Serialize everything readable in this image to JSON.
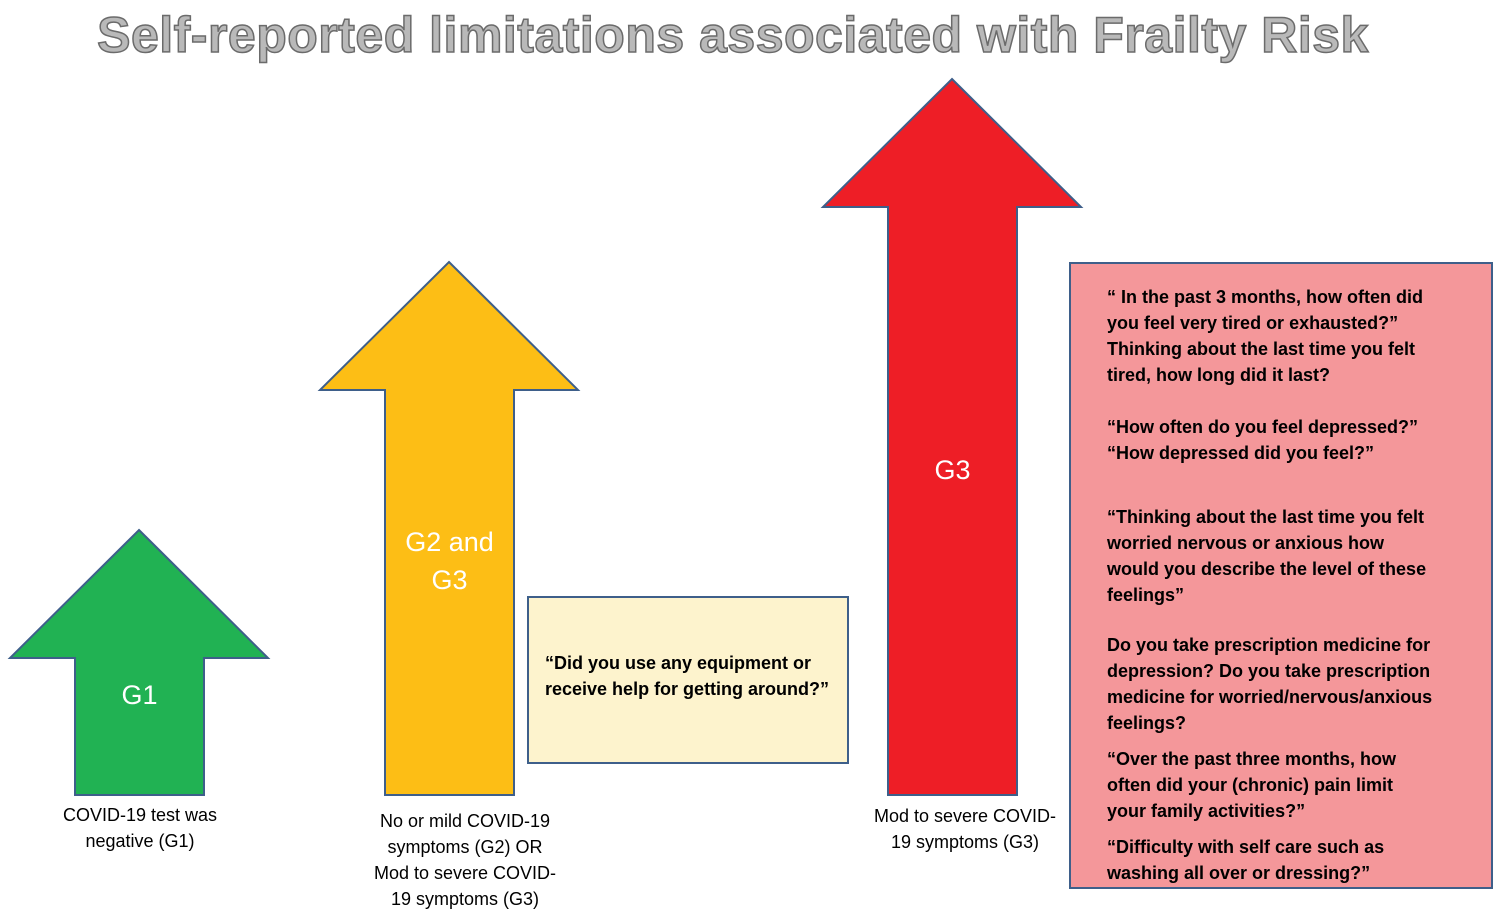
{
  "title": "Self-reported limitations associated with Frailty Risk",
  "colors": {
    "g1_arrow": "#21b253",
    "g2_arrow": "#fdbe15",
    "g3_arrow": "#ee1e26",
    "arrow_outline": "#3e5f8a",
    "yellow_box": "#fdf3cd",
    "red_box": "#f4979a"
  },
  "arrows": [
    {
      "label": "G1",
      "caption_lines": [
        "COVID-19 test was",
        "negative (G1)"
      ]
    },
    {
      "label_lines": [
        "G2 and",
        "G3"
      ],
      "caption_lines": [
        "No or mild COVID-19",
        "symptoms (G2) OR",
        "Mod to severe COVID-",
        "19 symptoms (G3)"
      ]
    },
    {
      "label": "G3",
      "caption_lines": [
        "Mod to severe COVID-",
        "19 symptoms (G3)"
      ]
    }
  ],
  "yellow_box": {
    "lines": [
      "“Did you use any equipment or",
      "receive help for getting around?”"
    ]
  },
  "red_box": {
    "q1": [
      "“ In the past 3 months, how often did",
      "you feel very tired or exhausted?”",
      "Thinking about the last time you felt",
      "tired, how long did it last?"
    ],
    "q2": [
      "“How often do you feel depressed?”",
      "“How depressed did you feel?”"
    ],
    "q3": [
      "“Thinking about the last time you felt",
      "worried nervous or anxious how",
      "would you describe the level of these",
      "feelings”"
    ],
    "q4": [
      "Do you take prescription medicine for",
      "depression? Do you take prescription",
      "medicine for worried/nervous/anxious",
      "feelings?"
    ],
    "q5": [
      "“Over the past three months, how",
      "often did your (chronic) pain limit",
      "your family activities?”"
    ],
    "q6": [
      "“Difficulty with self care such as",
      "washing all over or dressing?”"
    ]
  }
}
